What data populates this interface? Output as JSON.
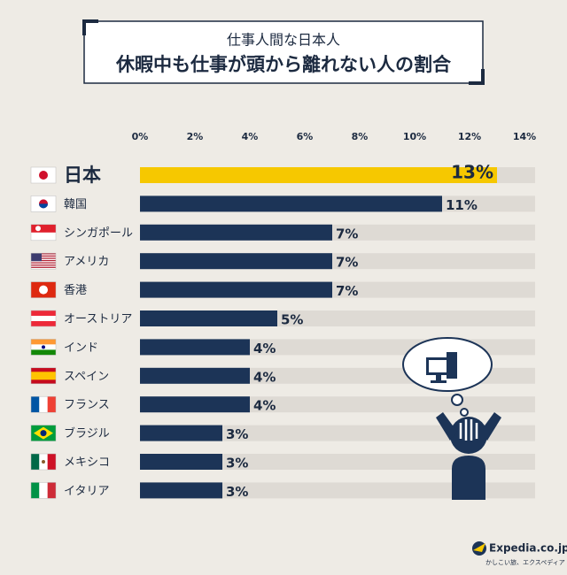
{
  "chart_data": {
    "type": "bar",
    "orientation": "horizontal",
    "subtitle": "仕事人間な日本人",
    "title": "休暇中も仕事が頭から離れない人の割合",
    "categories": [
      "日本",
      "韓国",
      "シンガポール",
      "アメリカ",
      "香港",
      "オーストリア",
      "インド",
      "スペイン",
      "フランス",
      "ブラジル",
      "メキシコ",
      "イタリア"
    ],
    "values": [
      13,
      11,
      7,
      7,
      7,
      5,
      4,
      4,
      4,
      3,
      3,
      3
    ],
    "value_labels": [
      "13%",
      "11%",
      "7%",
      "7%",
      "7%",
      "5%",
      "4%",
      "4%",
      "4%",
      "3%",
      "3%",
      "3%"
    ],
    "colors": [
      "#f6c800",
      "#1c3457",
      "#1c3457",
      "#1c3457",
      "#1c3457",
      "#1c3457",
      "#1c3457",
      "#1c3457",
      "#1c3457",
      "#1c3457",
      "#1c3457",
      "#1c3457"
    ],
    "xlim": [
      0,
      14
    ],
    "xticks": [
      {
        "value": 0,
        "label": "0%"
      },
      {
        "value": 2,
        "label": "2%"
      },
      {
        "value": 4,
        "label": "4%"
      },
      {
        "value": 6,
        "label": "6%"
      },
      {
        "value": 8,
        "label": "8%"
      },
      {
        "value": 10,
        "label": "10%"
      },
      {
        "value": 12,
        "label": "12%"
      },
      {
        "value": 14,
        "label": "14%"
      }
    ]
  },
  "logo": {
    "name": "Expedia.co.jp",
    "tagline": "かしこい旅、エクスペディア"
  }
}
